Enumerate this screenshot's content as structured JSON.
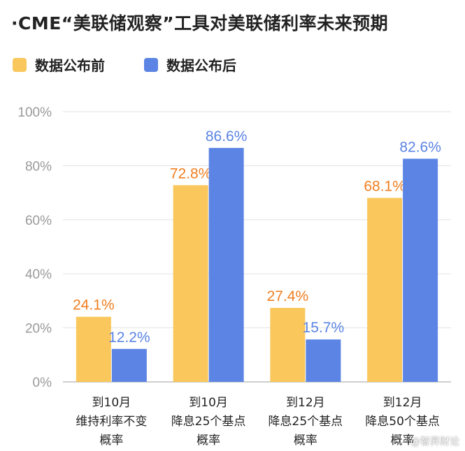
{
  "header": {
    "title": "·CME“美联储观察”工具对美联储利率未来预期"
  },
  "colors": {
    "before": "#F9C75C",
    "after": "#5B84E4",
    "before_label": "#F07F22",
    "after_label": "#5B84E4",
    "axis_text": "#9A9A9A",
    "grid": "#E2E2E2"
  },
  "watermark": "@智昇财论",
  "chart_data": {
    "type": "bar",
    "title": "·CME“美联储观察”工具对美联储利率未来预期",
    "categories": [
      [
        "到10月",
        "维持利率不变",
        "概率"
      ],
      [
        "到10月",
        "降息25个基点",
        "概率"
      ],
      [
        "到12月",
        "降息25个基点",
        "概率"
      ],
      [
        "到12月",
        "降息50个基点",
        "概率"
      ]
    ],
    "series": [
      {
        "name": "数据公布前",
        "values": [
          24.1,
          72.8,
          27.4,
          68.1
        ],
        "labels": [
          "24.1%",
          "72.8%",
          "27.4%",
          "68.1%"
        ]
      },
      {
        "name": "数据公布后",
        "values": [
          12.2,
          86.6,
          15.7,
          82.6
        ],
        "labels": [
          "12.2%",
          "86.6%",
          "15.7%",
          "82.6%"
        ]
      }
    ],
    "ylim": [
      0,
      100
    ],
    "yticks": [
      "0%",
      "20%",
      "40%",
      "60%",
      "80%",
      "100%"
    ],
    "xlabel": "",
    "ylabel": "",
    "legend": "top-left",
    "grid": true
  }
}
